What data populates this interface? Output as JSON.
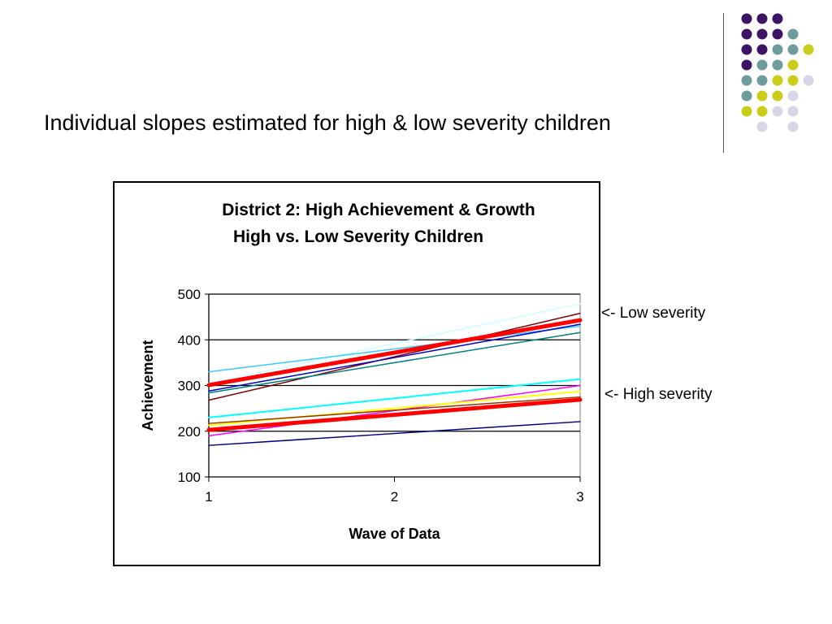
{
  "slide": {
    "title": "Individual slopes estimated for high & low severity children",
    "annotations": {
      "low": "<- Low severity",
      "high": "<- High severity"
    }
  },
  "decoration": {
    "dot_grid": [
      [
        "#3d1466",
        "#3d1466",
        "#3d1466",
        "",
        ""
      ],
      [
        "#3d1466",
        "#3d1466",
        "#3d1466",
        "#6e9c9c",
        ""
      ],
      [
        "#3d1466",
        "#3d1466",
        "#6e9c9c",
        "#6e9c9c",
        "#cccc1a"
      ],
      [
        "#3d1466",
        "#6e9c9c",
        "#6e9c9c",
        "#cccc1a",
        ""
      ],
      [
        "#6e9c9c",
        "#6e9c9c",
        "#cccc1a",
        "#cccc1a",
        "#d6d6e6"
      ],
      [
        "#6e9c9c",
        "#cccc1a",
        "#cccc1a",
        "#d6d6e6",
        ""
      ],
      [
        "#cccc1a",
        "#cccc1a",
        "#d6d6e6",
        "#d6d6e6",
        ""
      ],
      [
        "",
        "#d6d6e6",
        "",
        "#d6d6e6",
        ""
      ]
    ]
  },
  "chart_data": {
    "type": "line",
    "title": "District 2: High Achievement & Growth",
    "subtitle": "High vs. Low Severity Children",
    "xlabel": "Wave of Data",
    "ylabel": "Achievement",
    "x": [
      1,
      2,
      3
    ],
    "xlim": [
      1,
      3
    ],
    "ylim": [
      100,
      500
    ],
    "x_ticks": [
      "1",
      "2",
      "3"
    ],
    "y_ticks": [
      "100",
      "200",
      "300",
      "400",
      "500"
    ],
    "grid": "horizontal",
    "legend": "none",
    "series": [
      {
        "color": "#ccffff",
        "width": 1.5,
        "values": [
          305,
          392,
          479
        ]
      },
      {
        "color": "#800000",
        "width": 1.5,
        "values": [
          268,
          363,
          458
        ]
      },
      {
        "color": "#33ccff",
        "width": 1.5,
        "values": [
          330,
          380,
          430
        ]
      },
      {
        "color": "#008080",
        "width": 1.5,
        "values": [
          284,
          350,
          416
        ]
      },
      {
        "color": "#0000cc",
        "width": 1.5,
        "values": [
          288,
          361,
          434
        ]
      },
      {
        "color": "#ff0000",
        "width": 5,
        "values": [
          301,
          372,
          443
        ]
      },
      {
        "color": "#00ffff",
        "width": 2,
        "values": [
          230,
          272,
          314
        ]
      },
      {
        "color": "#ff00ff",
        "width": 1.5,
        "values": [
          190,
          245,
          300
        ]
      },
      {
        "color": "#ffff00",
        "width": 2,
        "values": [
          213,
          250,
          287
        ]
      },
      {
        "color": "#993300",
        "width": 1.5,
        "values": [
          217,
          246,
          275
        ]
      },
      {
        "color": "#ff0000",
        "width": 5,
        "values": [
          203,
          236,
          269
        ]
      },
      {
        "color": "#000080",
        "width": 1.5,
        "values": [
          169,
          195,
          221
        ]
      }
    ]
  }
}
